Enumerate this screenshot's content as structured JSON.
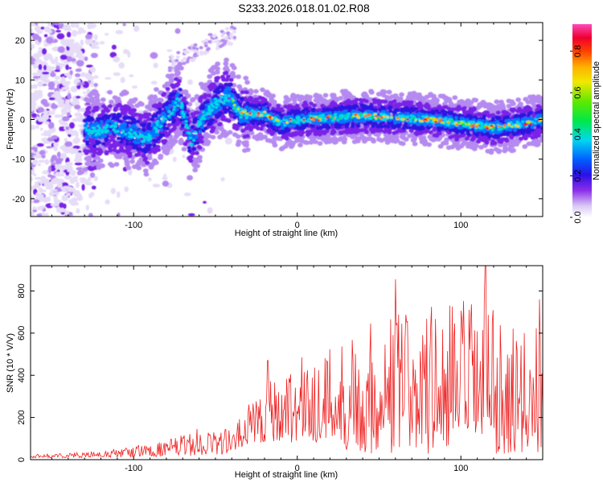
{
  "title": "S233.2026.018.01.02.R08",
  "chart_data": [
    {
      "type": "heatmap",
      "name": "spectrogram",
      "xlabel": "Height of straight line (km)",
      "ylabel": "Frequency (Hz)",
      "xlim": [
        -163,
        150
      ],
      "ylim": [
        -24.5,
        24.5
      ],
      "xticks": [
        -100,
        0,
        100
      ],
      "yticks": [
        -20,
        -10,
        0,
        10,
        20
      ],
      "colorbar": {
        "label": "Normalized spectral amplitude",
        "range": [
          0,
          0.93
        ],
        "ticks": [
          "0.0",
          "0.2",
          "0.4",
          "0.6",
          "0.8"
        ]
      },
      "ridge": [
        {
          "x": -125,
          "f": -3.0
        },
        {
          "x": -110,
          "f": -2.0
        },
        {
          "x": -100,
          "f": -3.5
        },
        {
          "x": -92,
          "f": -5.0
        },
        {
          "x": -80,
          "f": 1.0
        },
        {
          "x": -72,
          "f": 5.0
        },
        {
          "x": -65,
          "f": -5.5
        },
        {
          "x": -57,
          "f": 1.0
        },
        {
          "x": -50,
          "f": 4.0
        },
        {
          "x": -42,
          "f": 6.0
        },
        {
          "x": -35,
          "f": 1.5
        },
        {
          "x": -20,
          "f": 1.5
        },
        {
          "x": -10,
          "f": -1.0
        },
        {
          "x": 0,
          "f": 0.0
        },
        {
          "x": 20,
          "f": 0.5
        },
        {
          "x": 40,
          "f": 1.0
        },
        {
          "x": 60,
          "f": 0.5
        },
        {
          "x": 80,
          "f": 0.0
        },
        {
          "x": 100,
          "f": -1.0
        },
        {
          "x": 120,
          "f": -2.0
        },
        {
          "x": 140,
          "f": -1.0
        },
        {
          "x": 150,
          "f": 0.0
        }
      ]
    },
    {
      "type": "line",
      "name": "snr",
      "xlabel": "Height of straight line (km)",
      "ylabel": "SNR (10 * V/V)",
      "xlim": [
        -163,
        150
      ],
      "ylim": [
        0,
        920
      ],
      "xticks": [
        -100,
        0,
        100
      ],
      "yticks": [
        0,
        200,
        400,
        600,
        800
      ],
      "color": "#ee2222",
      "envelope": [
        {
          "x": -163,
          "lo": 8,
          "hi": 25
        },
        {
          "x": -120,
          "lo": 10,
          "hi": 40
        },
        {
          "x": -80,
          "lo": 15,
          "hi": 90
        },
        {
          "x": -60,
          "lo": 20,
          "hi": 150
        },
        {
          "x": -40,
          "lo": 25,
          "hi": 150
        },
        {
          "x": -35,
          "lo": 40,
          "hi": 200
        },
        {
          "x": -28,
          "lo": 70,
          "hi": 300
        },
        {
          "x": -20,
          "lo": 80,
          "hi": 380
        },
        {
          "x": 0,
          "lo": 80,
          "hi": 480
        },
        {
          "x": 20,
          "lo": 60,
          "hi": 560
        },
        {
          "x": 40,
          "lo": 30,
          "hi": 640
        },
        {
          "x": 60,
          "lo": 20,
          "hi": 740
        },
        {
          "x": 90,
          "lo": 20,
          "hi": 750
        },
        {
          "x": 110,
          "lo": 20,
          "hi": 800
        },
        {
          "x": 130,
          "lo": 30,
          "hi": 620
        },
        {
          "x": 150,
          "lo": 30,
          "hi": 640
        }
      ],
      "peaks": [
        {
          "x": -18,
          "y": 470
        },
        {
          "x": 60,
          "y": 855
        },
        {
          "x": 115,
          "y": 920
        },
        {
          "x": 148,
          "y": 760
        }
      ]
    }
  ],
  "palette": [
    "#ffffff",
    "#e6dcf8",
    "#b58af0",
    "#7a24e8",
    "#5a10d8",
    "#2a18e0",
    "#0078ff",
    "#00d8e8",
    "#00e040",
    "#b8e800",
    "#ffd000",
    "#ff7000",
    "#ee1010",
    "#ff44aa"
  ]
}
